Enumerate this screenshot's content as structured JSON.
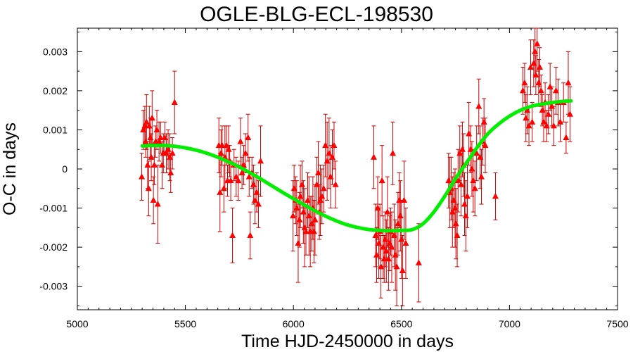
{
  "chart_data": {
    "type": "scatter",
    "title": "OGLE-BLG-ECL-198530",
    "xlabel": "Time HJD-2450000 in days",
    "ylabel": "O-C in days",
    "xlim": [
      5000,
      7500
    ],
    "ylim": [
      -0.0036,
      0.0036
    ],
    "x_ticks": [
      5000,
      5500,
      6000,
      6500,
      7000,
      7500
    ],
    "x_tick_labels": [
      "5000",
      "5500",
      "6000",
      "6500",
      "7000",
      "7500"
    ],
    "y_ticks": [
      -0.003,
      -0.002,
      -0.001,
      0,
      0.001,
      0.002,
      0.003
    ],
    "y_tick_labels": [
      "-0.003",
      "-0.002",
      "-0.001",
      "0",
      "0.001",
      "0.002",
      "0.003"
    ],
    "grid": false,
    "colors": {
      "points": "#ff0000",
      "errorbars": "#cc0000",
      "model": "#00ee00"
    },
    "series": [
      {
        "kind": "points_with_errorbars",
        "points": [
          {
            "x": 5298,
            "y": -0.0002,
            "e": 0.0006
          },
          {
            "x": 5305,
            "y": 0.001,
            "e": 0.0005
          },
          {
            "x": 5312,
            "y": 0.0011,
            "e": 0.0005
          },
          {
            "x": 5316,
            "y": 0.0007,
            "e": 0.0004
          },
          {
            "x": 5320,
            "y": 0.0012,
            "e": 0.0007
          },
          {
            "x": 5325,
            "y": 0.0001,
            "e": 0.0006
          },
          {
            "x": 5330,
            "y": -0.0005,
            "e": 0.0007
          },
          {
            "x": 5333,
            "y": 0.0011,
            "e": 0.0005
          },
          {
            "x": 5338,
            "y": 0.0008,
            "e": 0.0005
          },
          {
            "x": 5342,
            "y": 0.0003,
            "e": 0.0006
          },
          {
            "x": 5346,
            "y": 0.0013,
            "e": 0.0007
          },
          {
            "x": 5352,
            "y": -0.0008,
            "e": 0.0006
          },
          {
            "x": 5356,
            "y": 0.0001,
            "e": 0.0005
          },
          {
            "x": 5362,
            "y": 0.0007,
            "e": 0.0004
          },
          {
            "x": 5368,
            "y": 0.001,
            "e": 0.0005
          },
          {
            "x": 5372,
            "y": -0.0009,
            "e": 0.001
          },
          {
            "x": 5378,
            "y": 0.0007,
            "e": 0.0005
          },
          {
            "x": 5385,
            "y": 0.0008,
            "e": 0.0004
          },
          {
            "x": 5392,
            "y": 0.0001,
            "e": 0.0006
          },
          {
            "x": 5398,
            "y": 0.0004,
            "e": 0.0005
          },
          {
            "x": 5405,
            "y": 0.0008,
            "e": 0.0004
          },
          {
            "x": 5412,
            "y": 0.0004,
            "e": 0.0005
          },
          {
            "x": 5420,
            "y": 0.0005,
            "e": 0.0005
          },
          {
            "x": 5428,
            "y": 0.0003,
            "e": 0.0006
          },
          {
            "x": 5432,
            "y": -0.0001,
            "e": 0.0005
          },
          {
            "x": 5440,
            "y": 0.0004,
            "e": 0.0004
          },
          {
            "x": 5450,
            "y": 0.0017,
            "e": 0.0008
          },
          {
            "x": 5655,
            "y": 0.0006,
            "e": 0.0007
          },
          {
            "x": 5660,
            "y": -0.0006,
            "e": 0.001
          },
          {
            "x": 5665,
            "y": 0.0004,
            "e": 0.0006
          },
          {
            "x": 5670,
            "y": 0.0006,
            "e": 0.0005
          },
          {
            "x": 5678,
            "y": -0.0005,
            "e": 0.0006
          },
          {
            "x": 5683,
            "y": 0.0003,
            "e": 0.0008
          },
          {
            "x": 5690,
            "y": 0.0006,
            "e": 0.0005
          },
          {
            "x": 5695,
            "y": -0.0003,
            "e": 0.0004
          },
          {
            "x": 5700,
            "y": 0.0005,
            "e": 0.0006
          },
          {
            "x": 5705,
            "y": 0.0002,
            "e": 0.0004
          },
          {
            "x": 5710,
            "y": -0.0003,
            "e": 0.0005
          },
          {
            "x": 5718,
            "y": -0.0017,
            "e": 0.0007
          },
          {
            "x": 5725,
            "y": 0.0001,
            "e": 0.0004
          },
          {
            "x": 5735,
            "y": -0.0002,
            "e": 0.0005
          },
          {
            "x": 5745,
            "y": -0.0003,
            "e": 0.0005
          },
          {
            "x": 5755,
            "y": 0.0007,
            "e": 0.0006
          },
          {
            "x": 5762,
            "y": -0.0001,
            "e": 0.0004
          },
          {
            "x": 5770,
            "y": 0.0001,
            "e": 0.0005
          },
          {
            "x": 5778,
            "y": 0.0004,
            "e": 0.0005
          },
          {
            "x": 5790,
            "y": 0.0008,
            "e": 0.0006
          },
          {
            "x": 5795,
            "y": -0.0002,
            "e": 0.0005
          },
          {
            "x": 5800,
            "y": -0.0017,
            "e": 0.0006
          },
          {
            "x": 5808,
            "y": -0.0001,
            "e": 0.0004
          },
          {
            "x": 5815,
            "y": -0.0004,
            "e": 0.0005
          },
          {
            "x": 5822,
            "y": -0.0008,
            "e": 0.0006
          },
          {
            "x": 5830,
            "y": -0.0006,
            "e": 0.0005
          },
          {
            "x": 5838,
            "y": -0.0009,
            "e": 0.0006
          },
          {
            "x": 5848,
            "y": 0.0002,
            "e": 0.0009
          },
          {
            "x": 5998,
            "y": -0.0012,
            "e": 0.0009
          },
          {
            "x": 6003,
            "y": -0.0005,
            "e": 0.0006
          },
          {
            "x": 6010,
            "y": -0.0008,
            "e": 0.0006
          },
          {
            "x": 6015,
            "y": -0.001,
            "e": 0.0007
          },
          {
            "x": 6022,
            "y": -0.0019,
            "e": 0.001
          },
          {
            "x": 6028,
            "y": -0.0013,
            "e": 0.0007
          },
          {
            "x": 6032,
            "y": -0.0007,
            "e": 0.0008
          },
          {
            "x": 6040,
            "y": -0.0004,
            "e": 0.0006
          },
          {
            "x": 6046,
            "y": -0.0011,
            "e": 0.0008
          },
          {
            "x": 6052,
            "y": -0.0015,
            "e": 0.001
          },
          {
            "x": 6058,
            "y": -0.0016,
            "e": 0.0006
          },
          {
            "x": 6066,
            "y": -0.0008,
            "e": 0.0007
          },
          {
            "x": 6072,
            "y": -0.0012,
            "e": 0.001
          },
          {
            "x": 6078,
            "y": -0.0016,
            "e": 0.0009
          },
          {
            "x": 6085,
            "y": -0.0014,
            "e": 0.0007
          },
          {
            "x": 6090,
            "y": -0.001,
            "e": 0.0008
          },
          {
            "x": 6095,
            "y": -0.0016,
            "e": 0.0008
          },
          {
            "x": 6100,
            "y": -0.0013,
            "e": 0.0009
          },
          {
            "x": 6108,
            "y": -0.0004,
            "e": 0.0007
          },
          {
            "x": 6115,
            "y": -0.0001,
            "e": 0.0008
          },
          {
            "x": 6120,
            "y": -0.0011,
            "e": 0.0007
          },
          {
            "x": 6125,
            "y": -0.0008,
            "e": 0.0009
          },
          {
            "x": 6132,
            "y": -0.0007,
            "e": 0.0007
          },
          {
            "x": 6140,
            "y": -0.0005,
            "e": 0.0006
          },
          {
            "x": 6148,
            "y": 0.0006,
            "e": 0.0008
          },
          {
            "x": 6156,
            "y": 0.0002,
            "e": 0.001
          },
          {
            "x": 6165,
            "y": 0.0004,
            "e": 0.0009
          },
          {
            "x": 6172,
            "y": -0.0002,
            "e": 0.0008
          },
          {
            "x": 6180,
            "y": 0.0003,
            "e": 0.0007
          },
          {
            "x": 6188,
            "y": 0.0006,
            "e": 0.0006
          },
          {
            "x": 6195,
            "y": -0.0004,
            "e": 0.0006
          },
          {
            "x": 6372,
            "y": 0.0003,
            "e": 0.0008
          },
          {
            "x": 6380,
            "y": -0.0017,
            "e": 0.0008
          },
          {
            "x": 6385,
            "y": -0.0022,
            "e": 0.0007
          },
          {
            "x": 6390,
            "y": -0.001,
            "e": 0.0008
          },
          {
            "x": 6395,
            "y": -0.0019,
            "e": 0.0009
          },
          {
            "x": 6400,
            "y": -0.0016,
            "e": 0.0007
          },
          {
            "x": 6405,
            "y": -0.0025,
            "e": 0.0008
          },
          {
            "x": 6410,
            "y": -0.0003,
            "e": 0.0009
          },
          {
            "x": 6415,
            "y": -0.002,
            "e": 0.0008
          },
          {
            "x": 6420,
            "y": -0.0023,
            "e": 0.0006
          },
          {
            "x": 6425,
            "y": -0.0018,
            "e": 0.0007
          },
          {
            "x": 6430,
            "y": -0.0021,
            "e": 0.0008
          },
          {
            "x": 6435,
            "y": -0.0011,
            "e": 0.0009
          },
          {
            "x": 6440,
            "y": -0.0023,
            "e": 0.0008
          },
          {
            "x": 6445,
            "y": -0.0019,
            "e": 0.0007
          },
          {
            "x": 6450,
            "y": -0.0016,
            "e": 0.0006
          },
          {
            "x": 6455,
            "y": -0.002,
            "e": 0.0009
          },
          {
            "x": 6460,
            "y": 0.0004,
            "e": 0.0008
          },
          {
            "x": 6466,
            "y": -0.0017,
            "e": 0.0008
          },
          {
            "x": 6472,
            "y": -0.0022,
            "e": 0.0009
          },
          {
            "x": 6478,
            "y": -0.0025,
            "e": 0.001
          },
          {
            "x": 6484,
            "y": -0.0014,
            "e": 0.0008
          },
          {
            "x": 6490,
            "y": -0.0008,
            "e": 0.0007
          },
          {
            "x": 6495,
            "y": -0.0012,
            "e": 0.0009
          },
          {
            "x": 6500,
            "y": -0.0018,
            "e": 0.001
          },
          {
            "x": 6505,
            "y": -0.0026,
            "e": 0.0009
          },
          {
            "x": 6512,
            "y": -0.0008,
            "e": 0.001
          },
          {
            "x": 6520,
            "y": -0.0019,
            "e": 0.0009
          },
          {
            "x": 6580,
            "y": -0.0024,
            "e": 0.001
          },
          {
            "x": 6718,
            "y": -0.0003,
            "e": 0.0007
          },
          {
            "x": 6724,
            "y": -0.0006,
            "e": 0.0009
          },
          {
            "x": 6730,
            "y": -0.0005,
            "e": 0.0008
          },
          {
            "x": 6736,
            "y": -0.0011,
            "e": 0.0009
          },
          {
            "x": 6742,
            "y": -0.0008,
            "e": 0.0007
          },
          {
            "x": 6748,
            "y": -0.001,
            "e": 0.001
          },
          {
            "x": 6752,
            "y": -0.0014,
            "e": 0.0009
          },
          {
            "x": 6758,
            "y": -0.0017,
            "e": 0.0008
          },
          {
            "x": 6762,
            "y": -0.0003,
            "e": 0.0008
          },
          {
            "x": 6770,
            "y": 0.0004,
            "e": 0.0007
          },
          {
            "x": 6776,
            "y": -0.0004,
            "e": 0.0008
          },
          {
            "x": 6782,
            "y": 0.0005,
            "e": 0.0007
          },
          {
            "x": 6788,
            "y": 0.0001,
            "e": 0.0008
          },
          {
            "x": 6792,
            "y": -0.0009,
            "e": 0.0008
          },
          {
            "x": 6798,
            "y": -0.0012,
            "e": 0.0009
          },
          {
            "x": 6805,
            "y": -0.0007,
            "e": 0.0008
          },
          {
            "x": 6812,
            "y": 0.0009,
            "e": 0.0008
          },
          {
            "x": 6820,
            "y": 0.0005,
            "e": 0.0006
          },
          {
            "x": 6826,
            "y": 0.0,
            "e": 0.0007
          },
          {
            "x": 6832,
            "y": -0.0003,
            "e": 0.0008
          },
          {
            "x": 6840,
            "y": -0.0005,
            "e": 0.0007
          },
          {
            "x": 6848,
            "y": 0.0004,
            "e": 0.0007
          },
          {
            "x": 6858,
            "y": 0.0016,
            "e": 0.0007
          },
          {
            "x": 6864,
            "y": 0.0003,
            "e": 0.0008
          },
          {
            "x": 6870,
            "y": -0.0002,
            "e": 0.0007
          },
          {
            "x": 6876,
            "y": 0.0007,
            "e": 0.0006
          },
          {
            "x": 6882,
            "y": 0.0012,
            "e": 0.0006
          },
          {
            "x": 6888,
            "y": 0.0006,
            "e": 0.0007
          },
          {
            "x": 6935,
            "y": -0.0007,
            "e": 0.0006
          },
          {
            "x": 7062,
            "y": 0.002,
            "e": 0.0006
          },
          {
            "x": 7070,
            "y": 0.0022,
            "e": 0.0005
          },
          {
            "x": 7076,
            "y": 0.0013,
            "e": 0.0006
          },
          {
            "x": 7082,
            "y": 0.0015,
            "e": 0.0006
          },
          {
            "x": 7090,
            "y": 0.0011,
            "e": 0.0005
          },
          {
            "x": 7098,
            "y": 0.0026,
            "e": 0.0007
          },
          {
            "x": 7105,
            "y": 0.0012,
            "e": 0.0005
          },
          {
            "x": 7112,
            "y": 0.0027,
            "e": 0.0006
          },
          {
            "x": 7118,
            "y": 0.003,
            "e": 0.0006
          },
          {
            "x": 7122,
            "y": 0.0024,
            "e": 0.0005
          },
          {
            "x": 7128,
            "y": 0.0032,
            "e": 0.0007
          },
          {
            "x": 7135,
            "y": 0.0022,
            "e": 0.0006
          },
          {
            "x": 7140,
            "y": 0.0026,
            "e": 0.0005
          },
          {
            "x": 7146,
            "y": 0.002,
            "e": 0.0004
          },
          {
            "x": 7152,
            "y": 0.0015,
            "e": 0.0004
          },
          {
            "x": 7158,
            "y": 0.0012,
            "e": 0.0005
          },
          {
            "x": 7165,
            "y": 0.0017,
            "e": 0.0005
          },
          {
            "x": 7172,
            "y": 0.0011,
            "e": 0.0004
          },
          {
            "x": 7180,
            "y": 0.0014,
            "e": 0.0005
          },
          {
            "x": 7188,
            "y": 0.0021,
            "e": 0.0006
          },
          {
            "x": 7196,
            "y": 0.0016,
            "e": 0.0005
          },
          {
            "x": 7205,
            "y": 0.0011,
            "e": 0.0005
          },
          {
            "x": 7215,
            "y": 0.002,
            "e": 0.0006
          },
          {
            "x": 7225,
            "y": 0.0017,
            "e": 0.0006
          },
          {
            "x": 7235,
            "y": 0.0012,
            "e": 0.0005
          },
          {
            "x": 7250,
            "y": 0.0017,
            "e": 0.0005
          },
          {
            "x": 7262,
            "y": 0.0008,
            "e": 0.0004
          },
          {
            "x": 7272,
            "y": 0.0022,
            "e": 0.0008
          },
          {
            "x": 7280,
            "y": 0.0014,
            "e": 0.0007
          }
        ]
      },
      {
        "kind": "model_curve",
        "x": [
          5300,
          5350,
          5400,
          5450,
          5500,
          5550,
          5600,
          5650,
          5700,
          5750,
          5800,
          5850,
          5900,
          5950,
          6000,
          6050,
          6100,
          6150,
          6200,
          6250,
          6300,
          6350,
          6400,
          6450,
          6500,
          6550,
          6600,
          6650,
          6700,
          6750,
          6800,
          6850,
          6900,
          6950,
          7000,
          7050,
          7100,
          7150,
          7200,
          7250,
          7285
        ],
        "y": [
          0.00059,
          0.0006,
          0.0006,
          0.00058,
          0.00054,
          0.00048,
          0.0004,
          0.0003,
          0.00018,
          5e-05,
          -0.0001,
          -0.00026,
          -0.00043,
          -0.0006,
          -0.00076,
          -0.00092,
          -0.00107,
          -0.00121,
          -0.00133,
          -0.00143,
          -0.0015,
          -0.00155,
          -0.00157,
          -0.00158,
          -0.00157,
          -0.00155,
          -0.0014,
          -0.0011,
          -0.0007,
          -0.00025,
          0.00015,
          0.00055,
          0.0009,
          0.00115,
          0.00135,
          0.0015,
          0.0016,
          0.00166,
          0.0017,
          0.00173,
          0.00174
        ]
      }
    ]
  }
}
